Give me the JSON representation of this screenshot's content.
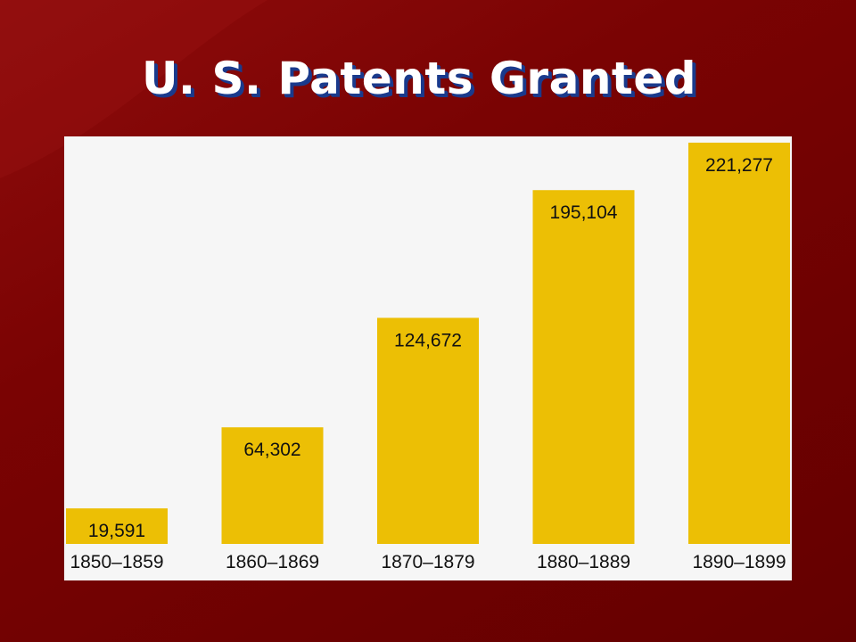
{
  "slide": {
    "title": "U. S. Patents Granted"
  },
  "colors": {
    "background": "#7a0303",
    "panel": "#f6f6f6",
    "bar": "#ecbf05",
    "text": "#111111",
    "title": "#ffffff",
    "title_shadow": "#1a3a8c"
  },
  "chart_data": {
    "type": "bar",
    "title": "U. S. Patents Granted",
    "categories": [
      "1850–1859",
      "1860–1869",
      "1870–1879",
      "1880–1889",
      "1890–1899"
    ],
    "values": [
      19591,
      64302,
      124672,
      195104,
      221277
    ],
    "value_labels": [
      "19,591",
      "64,302",
      "124,672",
      "195,104",
      "221,277"
    ],
    "xlabel": "",
    "ylabel": "",
    "grid": false,
    "legend": "none",
    "data_labels": "inside-top"
  }
}
